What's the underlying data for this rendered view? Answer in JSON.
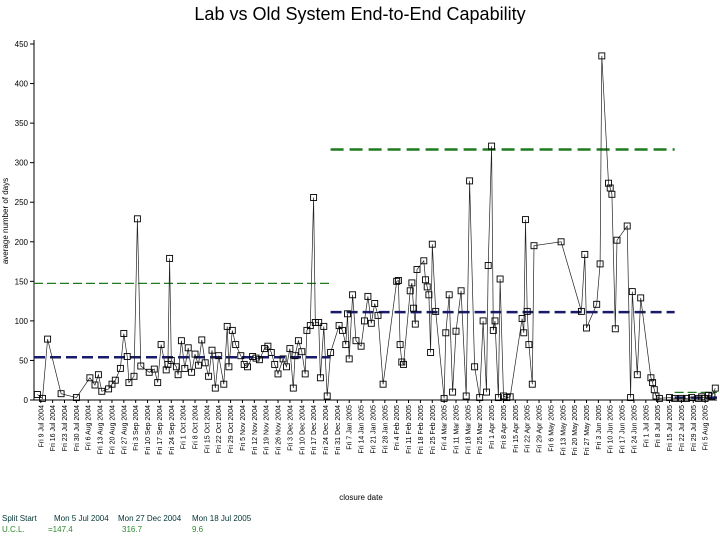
{
  "chart_data": {
    "type": "scatter",
    "title": "Lab vs Old System End-to-End Capability",
    "xlabel": "closure date",
    "ylabel": "average number of days",
    "ylim": [
      0,
      450
    ],
    "yticks": [
      0,
      50,
      100,
      150,
      200,
      250,
      300,
      350,
      400,
      450
    ],
    "x_start": "2004-07-05",
    "x_end": "2005-08-12",
    "xtick_labels": [
      "Fri 9 Jul 2004",
      "Fri 16 Jul 2004",
      "Fri 23 Jul 2004",
      "Fri 30 Jul 2004",
      "Fri 6 Aug 2004",
      "Fri 13 Aug 2004",
      "Fri 20 Aug 2004",
      "Fri 27 Aug 2004",
      "Fri 3 Sep 2004",
      "Fri 10 Sep 2004",
      "Fri 17 Sep 2004",
      "Fri 24 Sep 2004",
      "Fri 1 Oct 2004",
      "Fri 8 Oct 2004",
      "Fri 15 Oct 2004",
      "Fri 22 Oct 2004",
      "Fri 29 Oct 2004",
      "Fri 5 Nov 2004",
      "Fri 12 Nov 2004",
      "Fri 19 Nov 2004",
      "Fri 26 Nov 2004",
      "Fri 3 Dec 2004",
      "Fri 10 Dec 2004",
      "Fri 17 Dec 2004",
      "Fri 24 Dec 2004",
      "Fri 31 Dec 2004",
      "Fri 7 Jan 2005",
      "Fri 14 Jan 2005",
      "Fri 21 Jan 2005",
      "Fri 28 Jan 2005",
      "Fri 4 Feb 2005",
      "Fri 11 Feb 2005",
      "Fri 18 Feb 2005",
      "Fri 25 Feb 2005",
      "Fri 4 Mar 2005",
      "Fri 11 Mar 2005",
      "Fri 18 Mar 2005",
      "Fri 25 Mar 2005",
      "Fri 1 Apr 2005",
      "Fri 8 Apr 2005",
      "Fri 15 Apr 2005",
      "Fri 22 Apr 2005",
      "Fri 29 Apr 2005",
      "Fri 6 May 2005",
      "Fri 13 May 2005",
      "Fri 20 May 2005",
      "Fri 27 May 2005",
      "Fri 3 Jun 2005",
      "Fri 10 Jun 2005",
      "Fri 17 Jun 2005",
      "Fri 24 Jun 2005",
      "Fri 1 Jul 2005",
      "Fri 8 Jul 2005",
      "Fri 15 Jul 2005",
      "Fri 22 Jul 2005",
      "Fri 29 Jul 2005",
      "Fri 5 Aug 2005"
    ],
    "grid": false,
    "series": [
      {
        "marker": "square",
        "color": "#000000",
        "points": [
          [
            "2004-07-07",
            7
          ],
          [
            "2004-07-10",
            2
          ],
          [
            "2004-07-13",
            77
          ],
          [
            "2004-07-21",
            8
          ],
          [
            "2004-07-30",
            3
          ],
          [
            "2004-08-07",
            28
          ],
          [
            "2004-08-10",
            19
          ],
          [
            "2004-08-12",
            32
          ],
          [
            "2004-08-14",
            11
          ],
          [
            "2004-08-18",
            14
          ],
          [
            "2004-08-20",
            20
          ],
          [
            "2004-08-22",
            25
          ],
          [
            "2004-08-25",
            40
          ],
          [
            "2004-08-27",
            84
          ],
          [
            "2004-08-29",
            55
          ],
          [
            "2004-08-30",
            22
          ],
          [
            "2004-09-02",
            30
          ],
          [
            "2004-09-04",
            229
          ],
          [
            "2004-09-06",
            43
          ],
          [
            "2004-09-11",
            35
          ],
          [
            "2004-09-14",
            39
          ],
          [
            "2004-09-16",
            22
          ],
          [
            "2004-09-18",
            70
          ],
          [
            "2004-09-21",
            38
          ],
          [
            "2004-09-22",
            45
          ],
          [
            "2004-09-23",
            179
          ],
          [
            "2004-09-24",
            50
          ],
          [
            "2004-09-27",
            42
          ],
          [
            "2004-09-28",
            32
          ],
          [
            "2004-09-30",
            75
          ],
          [
            "2004-10-02",
            40
          ],
          [
            "2004-10-04",
            66
          ],
          [
            "2004-10-06",
            35
          ],
          [
            "2004-10-08",
            58
          ],
          [
            "2004-10-10",
            44
          ],
          [
            "2004-10-12",
            76
          ],
          [
            "2004-10-14",
            47
          ],
          [
            "2004-10-16",
            30
          ],
          [
            "2004-10-18",
            63
          ],
          [
            "2004-10-20",
            15
          ],
          [
            "2004-10-22",
            56
          ],
          [
            "2004-10-25",
            20
          ],
          [
            "2004-10-27",
            93
          ],
          [
            "2004-10-28",
            42
          ],
          [
            "2004-10-30",
            88
          ],
          [
            "2004-11-01",
            70
          ],
          [
            "2004-11-04",
            56
          ],
          [
            "2004-11-06",
            45
          ],
          [
            "2004-11-08",
            42
          ],
          [
            "2004-11-11",
            55
          ],
          [
            "2004-11-13",
            53
          ],
          [
            "2004-11-15",
            51
          ],
          [
            "2004-11-18",
            65
          ],
          [
            "2004-11-20",
            68
          ],
          [
            "2004-11-22",
            60
          ],
          [
            "2004-11-24",
            45
          ],
          [
            "2004-11-26",
            33
          ],
          [
            "2004-11-29",
            52
          ],
          [
            "2004-12-01",
            42
          ],
          [
            "2004-12-03",
            65
          ],
          [
            "2004-12-05",
            15
          ],
          [
            "2004-12-06",
            56
          ],
          [
            "2004-12-08",
            75
          ],
          [
            "2004-12-10",
            61
          ],
          [
            "2004-12-12",
            33
          ],
          [
            "2004-12-13",
            88
          ],
          [
            "2004-12-15",
            94
          ],
          [
            "2004-12-17",
            256
          ],
          [
            "2004-12-18",
            98
          ],
          [
            "2004-12-20",
            98
          ],
          [
            "2004-12-21",
            28
          ],
          [
            "2004-12-23",
            93
          ],
          [
            "2004-12-25",
            5
          ],
          [
            "2004-12-27",
            60
          ],
          [
            "2005-01-01",
            94
          ],
          [
            "2005-01-03",
            88
          ],
          [
            "2005-01-05",
            70
          ],
          [
            "2005-01-06",
            109
          ],
          [
            "2005-01-07",
            52
          ],
          [
            "2005-01-09",
            133
          ],
          [
            "2005-01-11",
            75
          ],
          [
            "2005-01-14",
            68
          ],
          [
            "2005-01-16",
            100
          ],
          [
            "2005-01-18",
            131
          ],
          [
            "2005-01-20",
            97
          ],
          [
            "2005-01-22",
            122
          ],
          [
            "2005-01-24",
            107
          ],
          [
            "2005-01-27",
            20
          ],
          [
            "2005-02-04",
            150
          ],
          [
            "2005-02-05",
            151
          ],
          [
            "2005-02-06",
            70
          ],
          [
            "2005-02-07",
            48
          ],
          [
            "2005-02-08",
            45
          ],
          [
            "2005-02-12",
            138
          ],
          [
            "2005-02-13",
            148
          ],
          [
            "2005-02-14",
            116
          ],
          [
            "2005-02-15",
            96
          ],
          [
            "2005-02-16",
            165
          ],
          [
            "2005-02-20",
            176
          ],
          [
            "2005-02-21",
            152
          ],
          [
            "2005-02-22",
            143
          ],
          [
            "2005-02-23",
            133
          ],
          [
            "2005-02-24",
            60
          ],
          [
            "2005-02-25",
            197
          ],
          [
            "2005-02-27",
            112
          ],
          [
            "2005-03-04",
            2
          ],
          [
            "2005-03-05",
            85
          ],
          [
            "2005-03-07",
            133
          ],
          [
            "2005-03-09",
            10
          ],
          [
            "2005-03-11",
            87
          ],
          [
            "2005-03-14",
            138
          ],
          [
            "2005-03-17",
            5
          ],
          [
            "2005-03-19",
            277
          ],
          [
            "2005-03-22",
            42
          ],
          [
            "2005-03-25",
            3
          ],
          [
            "2005-03-27",
            100
          ],
          [
            "2005-03-29",
            10
          ],
          [
            "2005-03-30",
            170
          ],
          [
            "2005-04-01",
            321
          ],
          [
            "2005-04-02",
            88
          ],
          [
            "2005-04-03",
            100
          ],
          [
            "2005-04-05",
            3
          ],
          [
            "2005-04-06",
            153
          ],
          [
            "2005-04-08",
            5
          ],
          [
            "2005-04-10",
            3
          ],
          [
            "2005-04-12",
            4
          ],
          [
            "2005-04-19",
            103
          ],
          [
            "2005-04-20",
            85
          ],
          [
            "2005-04-21",
            228
          ],
          [
            "2005-04-22",
            112
          ],
          [
            "2005-04-23",
            70
          ],
          [
            "2005-04-25",
            20
          ],
          [
            "2005-04-26",
            195
          ],
          [
            "2005-05-12",
            200
          ],
          [
            "2005-05-24",
            112
          ],
          [
            "2005-05-26",
            184
          ],
          [
            "2005-05-27",
            91
          ],
          [
            "2005-06-02",
            121
          ],
          [
            "2005-06-04",
            172
          ],
          [
            "2005-06-05",
            435
          ],
          [
            "2005-06-09",
            274
          ],
          [
            "2005-06-10",
            268
          ],
          [
            "2005-06-11",
            260
          ],
          [
            "2005-06-13",
            90
          ],
          [
            "2005-06-14",
            202
          ],
          [
            "2005-06-20",
            220
          ],
          [
            "2005-06-22",
            3
          ],
          [
            "2005-06-23",
            137
          ],
          [
            "2005-06-26",
            32
          ],
          [
            "2005-06-28",
            129
          ],
          [
            "2005-07-04",
            28
          ],
          [
            "2005-07-05",
            22
          ],
          [
            "2005-07-06",
            13
          ],
          [
            "2005-07-07",
            5
          ],
          [
            "2005-07-09",
            2
          ],
          [
            "2005-07-15",
            3
          ],
          [
            "2005-07-18",
            2
          ],
          [
            "2005-07-22",
            2
          ],
          [
            "2005-07-25",
            2
          ],
          [
            "2005-07-28",
            3
          ],
          [
            "2005-08-01",
            2
          ],
          [
            "2005-08-03",
            4
          ],
          [
            "2005-08-05",
            2
          ],
          [
            "2005-08-07",
            6
          ],
          [
            "2005-08-09",
            5
          ],
          [
            "2005-08-11",
            15
          ]
        ]
      }
    ],
    "reference_lines": [
      {
        "kind": "mean",
        "color": "#1a1a6b",
        "segments": [
          {
            "from": "2004-07-05",
            "to": "2004-12-27",
            "y": 54
          },
          {
            "from": "2004-12-27",
            "to": "2005-07-18",
            "y": 111
          },
          {
            "from": "2005-07-18",
            "to": "2005-08-12",
            "y": 3
          }
        ]
      },
      {
        "kind": "ucl",
        "color": "#1f7a1f",
        "segments": [
          {
            "from": "2004-07-05",
            "to": "2004-12-27",
            "y": 147.4
          },
          {
            "from": "2004-12-27",
            "to": "2005-07-18",
            "y": 316.7
          },
          {
            "from": "2005-07-18",
            "to": "2005-08-12",
            "y": 9.6
          }
        ]
      }
    ]
  },
  "footer": {
    "split_label": "Split Start",
    "split_dates": [
      "Mon  5 Jul 2004",
      "Mon 27 Dec 2004",
      "Mon 18 Jul 2005"
    ],
    "ucl_label": "U.C.L.",
    "ucl_values": [
      "=147.4",
      "316.7",
      "9.6"
    ]
  }
}
